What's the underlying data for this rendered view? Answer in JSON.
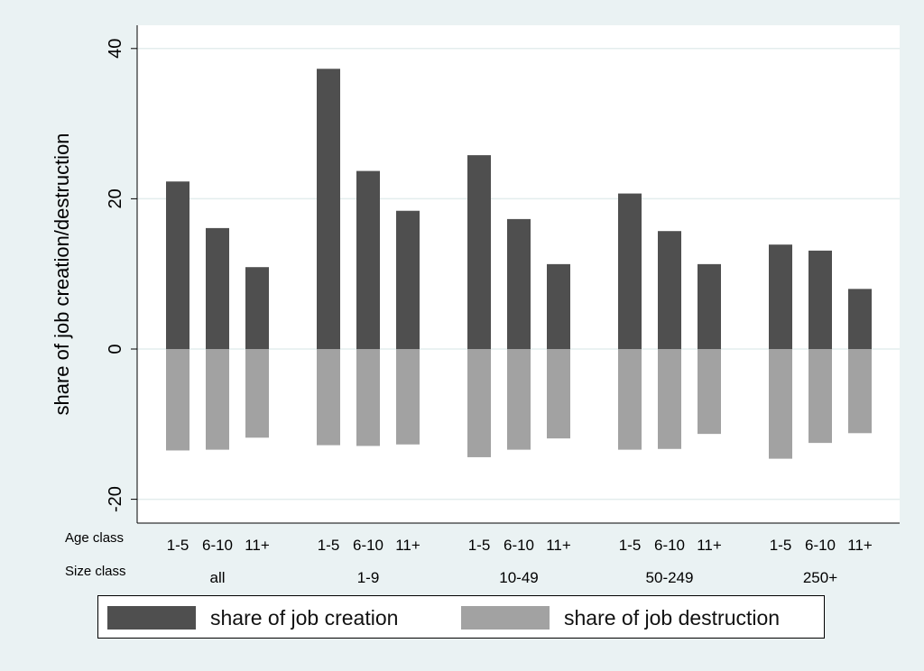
{
  "colors": {
    "creation": "#4f4f4f",
    "destruction": "#a2a2a2",
    "grid": "#e3eded",
    "plot_bg": "#ffffff",
    "page_bg": "#eaf2f3"
  },
  "chart_data": {
    "type": "bar",
    "ylabel": "share of job creation/destruction",
    "ylim": [
      -23,
      43
    ],
    "yticks": [
      -20,
      0,
      20,
      40
    ],
    "grid": true,
    "legend_position": "bottom",
    "row_labels": {
      "age": "Age class",
      "size": "Size class"
    },
    "groups": [
      {
        "size": "all",
        "ages": [
          "1-5",
          "6-10",
          "11+"
        ]
      },
      {
        "size": "1-9",
        "ages": [
          "1-5",
          "6-10",
          "11+"
        ]
      },
      {
        "size": "10-49",
        "ages": [
          "1-5",
          "6-10",
          "11+"
        ]
      },
      {
        "size": "50-249",
        "ages": [
          "1-5",
          "6-10",
          "11+"
        ]
      },
      {
        "size": "250+",
        "ages": [
          "1-5",
          "6-10",
          "11+"
        ]
      }
    ],
    "series": [
      {
        "name": "share of job creation",
        "values": [
          22.3,
          16.1,
          10.9,
          37.3,
          23.7,
          18.4,
          25.8,
          17.3,
          11.3,
          20.7,
          15.7,
          11.3,
          13.9,
          13.1,
          8.0
        ]
      },
      {
        "name": "share of job destruction",
        "values": [
          -13.5,
          -13.4,
          -11.8,
          -12.8,
          -12.9,
          -12.7,
          -14.4,
          -13.4,
          -11.9,
          -13.4,
          -13.3,
          -11.3,
          -14.6,
          -12.5,
          -11.2
        ]
      }
    ]
  }
}
